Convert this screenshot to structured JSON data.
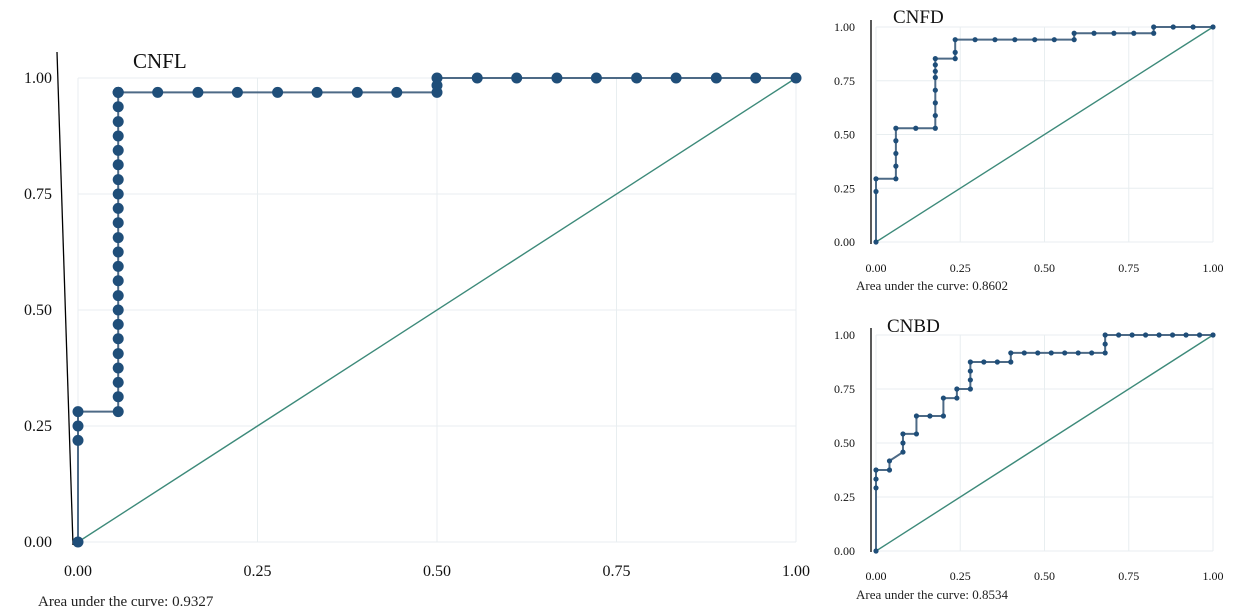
{
  "chart_data": [
    {
      "type": "line",
      "title": "CNFL",
      "caption": "Area under the curve: 0.9327",
      "xlabel": "",
      "ylabel": "",
      "xlim": [
        0,
        1
      ],
      "ylim": [
        0,
        1
      ],
      "xticks": [
        "0.00",
        "0.25",
        "0.50",
        "0.75",
        "1.00"
      ],
      "yticks": [
        "0.00",
        "0.25",
        "0.50",
        "0.75",
        "1.00"
      ],
      "grid": true,
      "series": [
        {
          "kind": "roc",
          "x": [
            0,
            0,
            0,
            0,
            0.056,
            0.056,
            0.056,
            0.056,
            0.056,
            0.056,
            0.056,
            0.056,
            0.056,
            0.056,
            0.056,
            0.056,
            0.056,
            0.056,
            0.056,
            0.056,
            0.056,
            0.056,
            0.056,
            0.056,
            0.056,
            0.056,
            0.056,
            0.056,
            0.056,
            0.111,
            0.167,
            0.222,
            0.278,
            0.333,
            0.389,
            0.444,
            0.5,
            0.5,
            0.5,
            0.556,
            0.611,
            0.667,
            0.722,
            0.778,
            0.833,
            0.889,
            0.944,
            1.0
          ],
          "y": [
            0.0,
            0.219,
            0.25,
            0.281,
            0.281,
            0.313,
            0.344,
            0.375,
            0.406,
            0.438,
            0.469,
            0.5,
            0.531,
            0.563,
            0.594,
            0.625,
            0.656,
            0.688,
            0.719,
            0.75,
            0.781,
            0.813,
            0.844,
            0.875,
            0.906,
            0.938,
            0.969,
            0.969,
            0.969,
            0.969,
            0.969,
            0.969,
            0.969,
            0.969,
            0.969,
            0.969,
            0.969,
            0.984,
            1.0,
            1.0,
            1.0,
            1.0,
            1.0,
            1.0,
            1.0,
            1.0,
            1.0,
            1.0
          ]
        },
        {
          "kind": "reference",
          "x": [
            0,
            1
          ],
          "y": [
            0,
            1
          ]
        }
      ],
      "colors": {
        "curve": "#1f4e79",
        "curve_line": "#4d6a86",
        "reference": "#3d8a7a"
      }
    },
    {
      "type": "line",
      "title": "CNFD",
      "caption": "Area under the curve: 0.8602",
      "xlabel": "",
      "ylabel": "",
      "xlim": [
        0,
        1
      ],
      "ylim": [
        0,
        1
      ],
      "xticks": [
        "0.00",
        "0.25",
        "0.50",
        "0.75",
        "1.00"
      ],
      "yticks": [
        "0.00",
        "0.25",
        "0.50",
        "0.75",
        "1.00"
      ],
      "grid": true,
      "series": [
        {
          "kind": "roc",
          "x": [
            0,
            0,
            0,
            0.059,
            0.059,
            0.059,
            0.059,
            0.059,
            0.118,
            0.176,
            0.176,
            0.176,
            0.176,
            0.176,
            0.176,
            0.176,
            0.176,
            0.235,
            0.235,
            0.235,
            0.294,
            0.353,
            0.412,
            0.471,
            0.529,
            0.588,
            0.588,
            0.647,
            0.706,
            0.765,
            0.824,
            0.824,
            0.882,
            0.941,
            1.0
          ],
          "y": [
            0.0,
            0.235,
            0.294,
            0.294,
            0.353,
            0.412,
            0.471,
            0.529,
            0.529,
            0.529,
            0.588,
            0.647,
            0.706,
            0.765,
            0.794,
            0.824,
            0.853,
            0.853,
            0.882,
            0.941,
            0.941,
            0.941,
            0.941,
            0.941,
            0.941,
            0.941,
            0.971,
            0.971,
            0.971,
            0.971,
            0.971,
            1.0,
            1.0,
            1.0,
            1.0
          ]
        },
        {
          "kind": "reference",
          "x": [
            0,
            1
          ],
          "y": [
            0,
            1
          ]
        }
      ],
      "colors": {
        "curve": "#1f4e79",
        "curve_line": "#4d6a86",
        "reference": "#3d8a7a"
      }
    },
    {
      "type": "line",
      "title": "CNBD",
      "caption": "Area under the curve: 0.8534",
      "xlabel": "",
      "ylabel": "",
      "xlim": [
        0,
        1
      ],
      "ylim": [
        0,
        1
      ],
      "xticks": [
        "0.00",
        "0.25",
        "0.50",
        "0.75",
        "1.00"
      ],
      "yticks": [
        "0.00",
        "0.25",
        "0.50",
        "0.75",
        "1.00"
      ],
      "grid": true,
      "series": [
        {
          "kind": "roc",
          "x": [
            0,
            0,
            0,
            0,
            0.04,
            0.04,
            0.08,
            0.08,
            0.08,
            0.12,
            0.12,
            0.16,
            0.2,
            0.2,
            0.24,
            0.24,
            0.28,
            0.28,
            0.28,
            0.28,
            0.32,
            0.36,
            0.4,
            0.4,
            0.44,
            0.48,
            0.52,
            0.56,
            0.6,
            0.64,
            0.68,
            0.68,
            0.68,
            0.72,
            0.76,
            0.8,
            0.84,
            0.88,
            0.92,
            0.96,
            1.0
          ],
          "y": [
            0.0,
            0.292,
            0.333,
            0.375,
            0.375,
            0.417,
            0.458,
            0.5,
            0.542,
            0.542,
            0.625,
            0.625,
            0.625,
            0.708,
            0.708,
            0.75,
            0.75,
            0.792,
            0.833,
            0.875,
            0.875,
            0.875,
            0.875,
            0.917,
            0.917,
            0.917,
            0.917,
            0.917,
            0.917,
            0.917,
            0.917,
            0.958,
            1.0,
            1.0,
            1.0,
            1.0,
            1.0,
            1.0,
            1.0,
            1.0,
            1.0
          ]
        },
        {
          "kind": "reference",
          "x": [
            0,
            1
          ],
          "y": [
            0,
            1
          ]
        }
      ],
      "colors": {
        "curve": "#1f4e79",
        "curve_line": "#4d6a86",
        "reference": "#3d8a7a"
      }
    }
  ]
}
